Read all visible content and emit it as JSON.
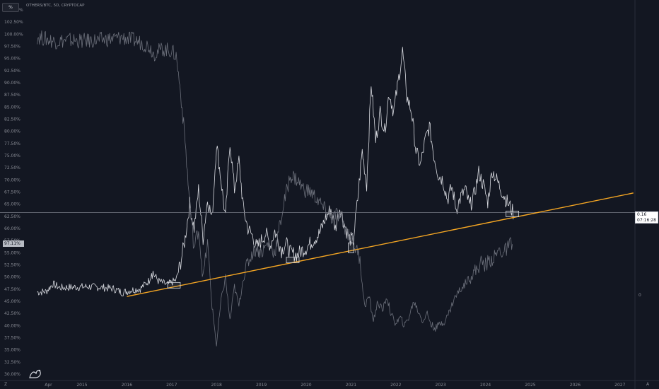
{
  "header": {
    "unit_badge": "%",
    "symbol": "OTHERS/BTC, 5D, CRYPTOCAP"
  },
  "left_marker": "97.11%",
  "price_label": {
    "value": "0.16",
    "time": "07:16:28"
  },
  "right_scale_label": "0",
  "corner_left": "Z",
  "corner_right": "A",
  "colors": {
    "background": "#131722",
    "trendline": "#f5a623",
    "candles_white": "#d8dae0",
    "candles_grey": "#6b6f7a",
    "ray_line": "#787b86"
  },
  "chart_data": {
    "type": "line",
    "ylim": [
      29.5,
      105.5
    ],
    "y_ticks": [
      "105.00%",
      "102.50%",
      "100.00%",
      "97.50%",
      "95.00%",
      "92.50%",
      "90.00%",
      "87.50%",
      "85.00%",
      "82.50%",
      "80.00%",
      "77.50%",
      "75.00%",
      "72.50%",
      "70.00%",
      "67.50%",
      "65.00%",
      "62.50%",
      "60.00%",
      "57.50%",
      "55.00%",
      "52.50%",
      "50.00%",
      "47.50%",
      "45.00%",
      "42.50%",
      "40.00%",
      "37.50%",
      "35.00%",
      "32.50%",
      "30.00%"
    ],
    "x_ticks": [
      "Apr",
      "2015",
      "2016",
      "2017",
      "2018",
      "2019",
      "2020",
      "2021",
      "2022",
      "2023",
      "2024",
      "2025",
      "2026",
      "2027"
    ],
    "x_tick_years": [
      2014.25,
      2015.0,
      2016.0,
      2017.0,
      2018.0,
      2019.0,
      2020.0,
      2021.0,
      2022.0,
      2023.0,
      2024.0,
      2025.0,
      2026.0,
      2027.0
    ],
    "horizontal_line": 63.3,
    "trendline": {
      "x": [
        2016.0,
        2027.3
      ],
      "y": [
        46.0,
        67.3
      ]
    },
    "touch_points": [
      {
        "x": 2017.05,
        "y": 48.3
      },
      {
        "x": 2019.7,
        "y": 53.5
      },
      {
        "x": 2021.0,
        "y": 56.0
      },
      {
        "x": 2024.6,
        "y": 63.0
      }
    ],
    "series": [
      {
        "color": "white",
        "points": [
          [
            2014.0,
            46.9
          ],
          [
            2014.2,
            47.0
          ],
          [
            2014.35,
            48.6
          ],
          [
            2014.5,
            47.8
          ],
          [
            2014.8,
            47.9
          ],
          [
            2015.1,
            48.0
          ],
          [
            2015.4,
            47.9
          ],
          [
            2015.7,
            47.6
          ],
          [
            2015.9,
            46.8
          ],
          [
            2016.1,
            47.3
          ],
          [
            2016.3,
            47.6
          ],
          [
            2016.5,
            49.3
          ],
          [
            2016.55,
            51.4
          ],
          [
            2016.7,
            49.2
          ],
          [
            2016.9,
            48.4
          ],
          [
            2017.0,
            48.9
          ],
          [
            2017.1,
            49.4
          ],
          [
            2017.2,
            53.0
          ],
          [
            2017.3,
            58.0
          ],
          [
            2017.4,
            65.0
          ],
          [
            2017.5,
            60.0
          ],
          [
            2017.6,
            68.0
          ],
          [
            2017.7,
            58.0
          ],
          [
            2017.8,
            66.0
          ],
          [
            2017.9,
            62.0
          ],
          [
            2018.0,
            77.5
          ],
          [
            2018.1,
            70.0
          ],
          [
            2018.2,
            62.0
          ],
          [
            2018.3,
            78.0
          ],
          [
            2018.4,
            68.0
          ],
          [
            2018.5,
            74.0
          ],
          [
            2018.6,
            64.0
          ],
          [
            2018.7,
            60.0
          ],
          [
            2018.8,
            58.5
          ],
          [
            2018.9,
            56.0
          ],
          [
            2019.0,
            57.5
          ],
          [
            2019.1,
            59.0
          ],
          [
            2019.2,
            56.5
          ],
          [
            2019.3,
            59.5
          ],
          [
            2019.45,
            55.5
          ],
          [
            2019.55,
            57.0
          ],
          [
            2019.65,
            55.0
          ],
          [
            2019.8,
            54.5
          ],
          [
            2019.9,
            55.5
          ],
          [
            2020.0,
            56.0
          ],
          [
            2020.15,
            57.5
          ],
          [
            2020.3,
            59.0
          ],
          [
            2020.45,
            62.5
          ],
          [
            2020.55,
            64.0
          ],
          [
            2020.65,
            60.0
          ],
          [
            2020.75,
            64.5
          ],
          [
            2020.85,
            61.0
          ],
          [
            2020.95,
            58.0
          ],
          [
            2021.05,
            57.5
          ],
          [
            2021.15,
            66.0
          ],
          [
            2021.25,
            76.0
          ],
          [
            2021.35,
            69.0
          ],
          [
            2021.45,
            90.0
          ],
          [
            2021.55,
            78.0
          ],
          [
            2021.65,
            84.0
          ],
          [
            2021.75,
            80.0
          ],
          [
            2021.85,
            88.0
          ],
          [
            2021.95,
            84.0
          ],
          [
            2022.05,
            90.0
          ],
          [
            2022.15,
            96.5
          ],
          [
            2022.25,
            87.0
          ],
          [
            2022.35,
            84.0
          ],
          [
            2022.45,
            76.0
          ],
          [
            2022.55,
            73.0
          ],
          [
            2022.65,
            78.0
          ],
          [
            2022.75,
            81.0
          ],
          [
            2022.85,
            75.0
          ],
          [
            2022.95,
            71.0
          ],
          [
            2023.05,
            70.0
          ],
          [
            2023.15,
            66.0
          ],
          [
            2023.25,
            68.5
          ],
          [
            2023.35,
            64.0
          ],
          [
            2023.45,
            66.5
          ],
          [
            2023.55,
            68.0
          ],
          [
            2023.65,
            64.5
          ],
          [
            2023.75,
            67.0
          ],
          [
            2023.85,
            71.5
          ],
          [
            2023.95,
            69.0
          ],
          [
            2024.05,
            65.5
          ],
          [
            2024.15,
            72.0
          ],
          [
            2024.25,
            70.0
          ],
          [
            2024.35,
            68.0
          ],
          [
            2024.45,
            66.0
          ],
          [
            2024.55,
            64.5
          ],
          [
            2024.62,
            63.2
          ]
        ]
      },
      {
        "color": "grey",
        "points": [
          [
            2014.0,
            99.5
          ],
          [
            2014.2,
            99.0
          ],
          [
            2014.4,
            98.5
          ],
          [
            2014.7,
            98.8
          ],
          [
            2015.0,
            98.6
          ],
          [
            2015.3,
            98.7
          ],
          [
            2015.6,
            99.0
          ],
          [
            2015.9,
            99.3
          ],
          [
            2016.2,
            98.7
          ],
          [
            2016.5,
            97.5
          ],
          [
            2016.6,
            96.0
          ],
          [
            2016.8,
            97.0
          ],
          [
            2017.0,
            96.5
          ],
          [
            2017.1,
            95.5
          ],
          [
            2017.2,
            88.0
          ],
          [
            2017.3,
            78.0
          ],
          [
            2017.4,
            65.0
          ],
          [
            2017.5,
            56.0
          ],
          [
            2017.6,
            60.0
          ],
          [
            2017.7,
            50.0
          ],
          [
            2017.8,
            57.0
          ],
          [
            2017.9,
            44.0
          ],
          [
            2018.0,
            36.0
          ],
          [
            2018.1,
            45.0
          ],
          [
            2018.2,
            50.0
          ],
          [
            2018.3,
            41.0
          ],
          [
            2018.4,
            48.0
          ],
          [
            2018.5,
            44.0
          ],
          [
            2018.6,
            50.0
          ],
          [
            2018.7,
            53.0
          ],
          [
            2018.8,
            55.0
          ],
          [
            2018.9,
            56.0
          ],
          [
            2019.0,
            55.0
          ],
          [
            2019.15,
            57.0
          ],
          [
            2019.3,
            55.0
          ],
          [
            2019.5,
            65.0
          ],
          [
            2019.65,
            71.0
          ],
          [
            2019.8,
            70.0
          ],
          [
            2019.95,
            68.0
          ],
          [
            2020.1,
            67.5
          ],
          [
            2020.25,
            66.0
          ],
          [
            2020.4,
            64.0
          ],
          [
            2020.55,
            62.0
          ],
          [
            2020.7,
            63.0
          ],
          [
            2020.85,
            60.5
          ],
          [
            2021.0,
            58.0
          ],
          [
            2021.1,
            56.0
          ],
          [
            2021.2,
            54.0
          ],
          [
            2021.3,
            44.0
          ],
          [
            2021.4,
            46.0
          ],
          [
            2021.5,
            41.0
          ],
          [
            2021.6,
            45.0
          ],
          [
            2021.7,
            43.0
          ],
          [
            2021.8,
            46.0
          ],
          [
            2021.9,
            42.0
          ],
          [
            2022.0,
            40.5
          ],
          [
            2022.1,
            41.5
          ],
          [
            2022.2,
            40.0
          ],
          [
            2022.3,
            42.0
          ],
          [
            2022.4,
            45.0
          ],
          [
            2022.5,
            43.0
          ],
          [
            2022.6,
            41.0
          ],
          [
            2022.7,
            42.5
          ],
          [
            2022.8,
            40.0
          ],
          [
            2022.9,
            39.5
          ],
          [
            2023.0,
            40.5
          ],
          [
            2023.1,
            41.0
          ],
          [
            2023.2,
            43.0
          ],
          [
            2023.3,
            45.5
          ],
          [
            2023.4,
            47.0
          ],
          [
            2023.5,
            48.0
          ],
          [
            2023.6,
            49.5
          ],
          [
            2023.7,
            50.5
          ],
          [
            2023.8,
            51.5
          ],
          [
            2023.9,
            53.0
          ],
          [
            2024.0,
            52.5
          ],
          [
            2024.1,
            53.5
          ],
          [
            2024.2,
            54.0
          ],
          [
            2024.3,
            55.5
          ],
          [
            2024.4,
            55.0
          ],
          [
            2024.5,
            56.0
          ],
          [
            2024.6,
            57.5
          ]
        ]
      }
    ]
  }
}
